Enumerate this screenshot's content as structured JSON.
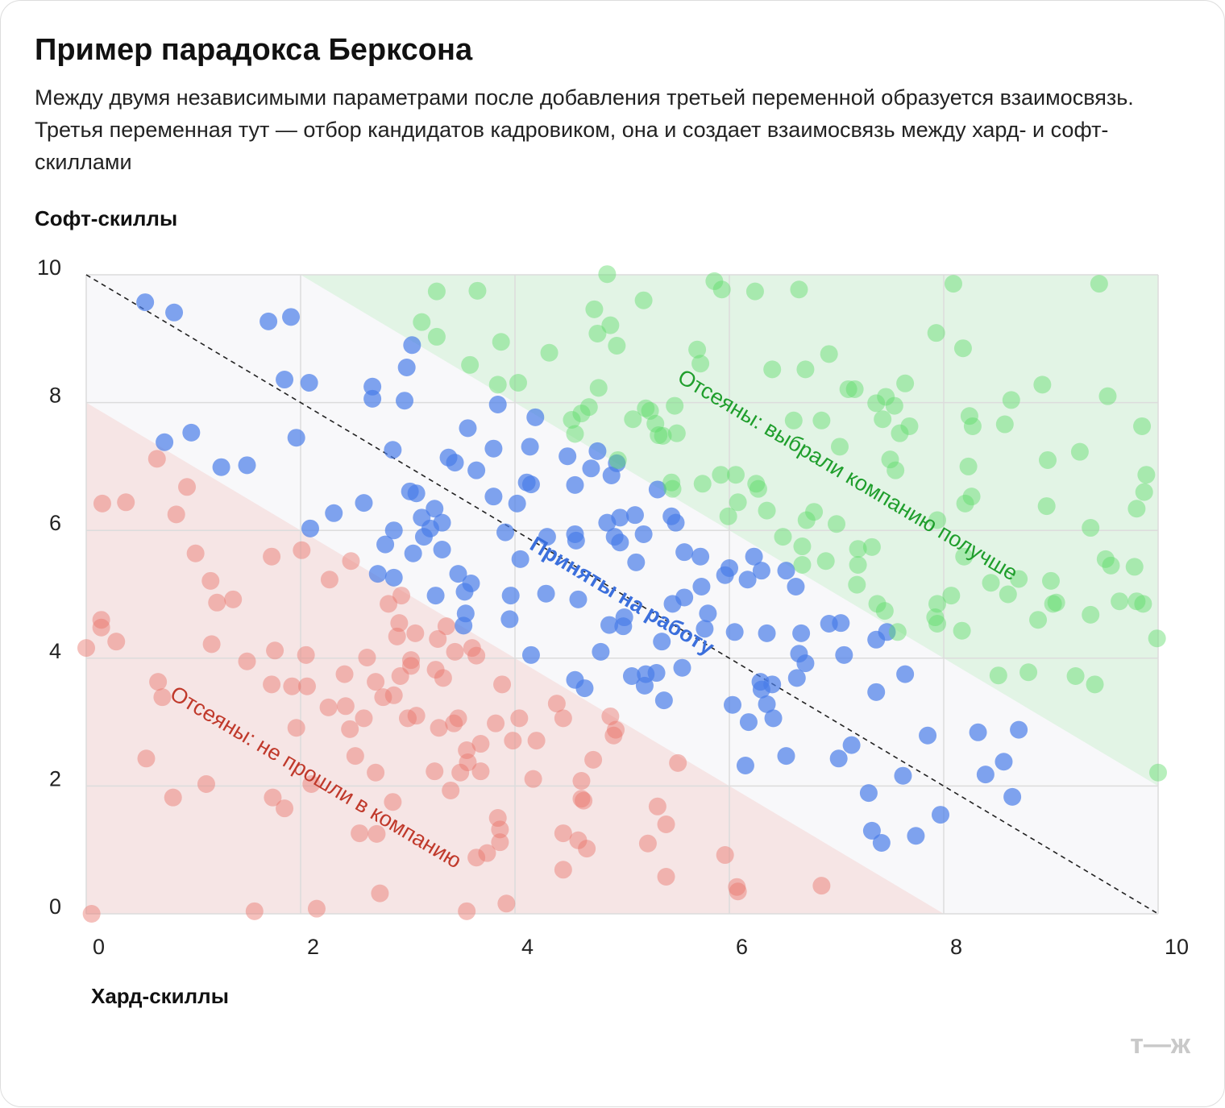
{
  "logo": "т—ж",
  "chart_data": {
    "type": "scatter",
    "title": "Пример парадокса Берксона",
    "subtitle": "Между двумя независимыми параметрами после добавления третьей переменной образуется взаимосвязь. Третья переменная тут — отбор кандидатов кадровиком, она и создает взаимосвязь между хард- и софт-скиллами",
    "xlabel": "Хард-скиллы",
    "ylabel": "Софт-скиллы",
    "xlim": [
      0,
      10
    ],
    "ylim": [
      0,
      10
    ],
    "xticks": [
      0,
      2,
      4,
      6,
      8,
      10
    ],
    "yticks": [
      0,
      2,
      4,
      6,
      8,
      10
    ],
    "grid": true,
    "series": [
      {
        "name": "Отсеяны: не прошли в компанию",
        "color": "#e8736b",
        "x": [
          0.05,
          0.0,
          0.14,
          0.14,
          0.28,
          0.15,
          0.37,
          0.66,
          0.94,
          0.84,
          1.02,
          1.16,
          1.22,
          1.37,
          1.17,
          0.56,
          0.81,
          1.12,
          0.67,
          0.71,
          1.5,
          1.73,
          1.76,
          1.73,
          1.92,
          2.01,
          2.05,
          2.06,
          1.96,
          1.74,
          1.85,
          2.1,
          1.57,
          2.15,
          2.27,
          2.47,
          2.26,
          2.41,
          2.42,
          2.46,
          2.51,
          2.62,
          2.59,
          2.7,
          2.7,
          2.55,
          2.71,
          2.74,
          2.82,
          2.94,
          2.92,
          2.9,
          2.77,
          2.87,
          2.93,
          2.86,
          3.03,
          3.03,
          3.07,
          3.0,
          3.08,
          3.26,
          3.29,
          3.25,
          3.28,
          3.33,
          3.36,
          3.44,
          3.4,
          3.43,
          3.47,
          3.49,
          3.55,
          3.56,
          3.6,
          3.64,
          3.68,
          3.68,
          3.64,
          3.74,
          3.55,
          3.82,
          3.88,
          3.84,
          3.86,
          3.86,
          3.92,
          3.98,
          4.04,
          4.17,
          4.2,
          4.39,
          4.45,
          4.45,
          4.45,
          4.59,
          4.67,
          4.62,
          4.62,
          4.64,
          4.73,
          4.89,
          4.92,
          4.94,
          5.33,
          5.41,
          5.24,
          5.41,
          5.52,
          5.96,
          6.07,
          6.08,
          6.86
        ],
        "values": [
          0.0,
          4.16,
          4.6,
          4.48,
          4.26,
          6.42,
          6.44,
          7.12,
          6.68,
          6.25,
          5.64,
          5.21,
          4.87,
          4.92,
          4.22,
          2.43,
          1.82,
          2.03,
          3.63,
          3.39,
          3.95,
          5.59,
          4.12,
          3.59,
          3.56,
          5.69,
          4.05,
          3.56,
          2.91,
          1.82,
          1.65,
          2.03,
          0.04,
          0.08,
          5.23,
          5.52,
          3.23,
          3.75,
          3.25,
          2.89,
          2.47,
          4.01,
          3.06,
          3.63,
          2.21,
          1.26,
          1.25,
          0.32,
          4.85,
          4.98,
          4.55,
          4.34,
          3.39,
          3.42,
          3.72,
          1.75,
          3.97,
          3.88,
          4.39,
          3.06,
          3.1,
          3.82,
          2.91,
          2.23,
          4.3,
          3.69,
          4.5,
          4.1,
          1.93,
          2.98,
          3.06,
          2.21,
          2.56,
          2.37,
          4.16,
          4.04,
          2.66,
          2.23,
          0.88,
          0.95,
          0.04,
          2.98,
          3.59,
          1.5,
          1.32,
          1.12,
          0.16,
          2.71,
          3.06,
          2.11,
          2.71,
          3.29,
          3.06,
          1.26,
          0.69,
          1.15,
          1.02,
          2.08,
          1.8,
          1.77,
          2.41,
          3.09,
          2.79,
          2.88,
          1.68,
          1.4,
          1.1,
          0.58,
          2.36,
          0.92,
          0.42,
          0.35,
          0.44
        ]
      },
      {
        "name": "Приняты на работу",
        "color": "#4a7ee8",
        "x": [
          0.55,
          0.82,
          1.7,
          1.91,
          1.85,
          2.08,
          1.96,
          0.98,
          0.73,
          1.26,
          1.5,
          2.09,
          2.31,
          2.59,
          2.67,
          2.67,
          2.97,
          2.99,
          3.04,
          2.86,
          3.02,
          3.08,
          3.13,
          3.15,
          3.21,
          3.25,
          3.32,
          2.87,
          2.79,
          3.05,
          3.32,
          2.72,
          2.87,
          3.26,
          3.38,
          3.44,
          3.56,
          3.64,
          3.8,
          3.84,
          3.8,
          4.02,
          4.11,
          4.15,
          4.14,
          4.19,
          3.91,
          4.05,
          3.47,
          3.53,
          3.59,
          3.54,
          3.52,
          3.96,
          3.95,
          4.15,
          4.29,
          4.3,
          4.49,
          4.56,
          4.56,
          4.57,
          4.59,
          4.56,
          4.65,
          4.71,
          4.77,
          4.86,
          4.9,
          4.95,
          4.93,
          4.98,
          4.98,
          5.12,
          5.2,
          5.33,
          5.46,
          5.5,
          5.13,
          4.88,
          5.01,
          5.02,
          4.8,
          5.09,
          5.22,
          5.21,
          5.32,
          5.37,
          5.39,
          5.56,
          5.47,
          5.58,
          5.58,
          5.73,
          5.74,
          5.8,
          5.77,
          5.96,
          6.0,
          6.05,
          6.03,
          6.18,
          6.15,
          6.17,
          6.23,
          6.3,
          6.35,
          6.29,
          6.3,
          6.4,
          6.35,
          6.41,
          6.53,
          6.62,
          6.67,
          6.65,
          6.71,
          6.63,
          6.53,
          6.93,
          7.04,
          7.07,
          7.02,
          7.14,
          7.3,
          7.33,
          7.42,
          7.37,
          7.47,
          7.37,
          7.64,
          7.62,
          7.74,
          7.85,
          7.97,
          8.32,
          8.39,
          8.56,
          8.64,
          8.7
        ],
        "values": [
          9.57,
          9.41,
          9.27,
          9.34,
          8.36,
          8.31,
          7.45,
          7.53,
          7.38,
          6.99,
          7.02,
          6.03,
          6.27,
          6.43,
          8.25,
          8.06,
          8.03,
          8.55,
          8.9,
          7.26,
          6.61,
          6.58,
          6.2,
          5.9,
          6.03,
          6.34,
          6.12,
          6.0,
          5.78,
          5.64,
          5.7,
          5.32,
          5.26,
          4.98,
          7.14,
          7.06,
          7.6,
          6.94,
          7.28,
          7.97,
          6.53,
          6.42,
          6.75,
          6.72,
          7.31,
          7.77,
          5.97,
          5.55,
          5.32,
          5.04,
          5.17,
          4.7,
          4.51,
          4.98,
          4.61,
          4.05,
          5.01,
          5.9,
          7.16,
          6.71,
          5.94,
          5.84,
          4.92,
          3.66,
          3.53,
          6.97,
          7.24,
          6.12,
          6.86,
          7.05,
          5.9,
          5.81,
          6.2,
          6.24,
          5.94,
          6.64,
          6.22,
          6.12,
          5.5,
          4.52,
          4.5,
          4.64,
          4.1,
          3.72,
          3.75,
          3.57,
          3.77,
          4.26,
          3.34,
          3.85,
          4.85,
          4.95,
          5.66,
          5.59,
          5.12,
          4.7,
          4.46,
          5.3,
          5.41,
          4.41,
          3.27,
          3.0,
          2.32,
          5.23,
          5.59,
          5.37,
          4.39,
          3.63,
          3.51,
          3.59,
          3.28,
          3.06,
          5.37,
          5.12,
          4.39,
          4.07,
          3.92,
          3.69,
          2.47,
          4.54,
          4.55,
          4.05,
          2.43,
          2.64,
          1.89,
          1.3,
          1.11,
          4.29,
          4.41,
          3.47,
          3.75,
          2.16,
          1.22,
          2.79,
          1.55,
          2.84,
          2.18,
          2.38,
          1.83,
          2.88
        ]
      },
      {
        "name": "Отсеяны: выбрали компанию получше",
        "color": "#5fdc6a",
        "x": [
          4.86,
          3.27,
          3.65,
          3.13,
          3.27,
          3.87,
          3.58,
          3.84,
          4.03,
          4.32,
          4.74,
          4.77,
          4.89,
          4.95,
          4.78,
          4.53,
          4.56,
          4.69,
          4.62,
          4.96,
          5.1,
          5.2,
          5.22,
          5.26,
          5.31,
          5.34,
          5.38,
          5.49,
          5.51,
          5.46,
          5.47,
          5.75,
          5.7,
          5.73,
          5.86,
          5.93,
          5.92,
          6.06,
          5.99,
          6.08,
          6.24,
          6.4,
          6.27,
          6.25,
          6.35,
          6.5,
          6.65,
          6.71,
          6.6,
          6.72,
          6.79,
          6.68,
          6.68,
          6.86,
          6.93,
          7.0,
          7.03,
          7.11,
          7.17,
          6.9,
          7.2,
          7.2,
          7.19,
          7.37,
          7.46,
          7.43,
          7.54,
          7.59,
          7.5,
          7.55,
          7.64,
          7.68,
          7.33,
          7.38,
          7.45,
          7.57,
          7.93,
          7.94,
          7.94,
          7.94,
          7.92,
          8.09,
          8.18,
          8.07,
          8.17,
          8.23,
          8.2,
          8.24,
          8.27,
          8.26,
          8.19,
          8.44,
          8.57,
          8.63,
          8.51,
          8.6,
          8.7,
          8.79,
          8.88,
          8.92,
          8.96,
          8.97,
          9.0,
          9.05,
          9.02,
          9.23,
          9.27,
          9.37,
          9.37,
          9.41,
          9.45,
          9.53,
          9.51,
          9.56,
          9.64,
          9.8,
          9.86,
          9.78,
          9.8,
          9.85,
          9.87,
          9.89,
          9.99,
          10.0
        ],
        "values": [
          10.01,
          9.74,
          9.75,
          9.26,
          9.03,
          8.95,
          8.59,
          8.28,
          8.31,
          8.78,
          9.46,
          9.08,
          9.21,
          8.89,
          8.23,
          7.73,
          7.51,
          7.93,
          7.83,
          7.1,
          7.74,
          9.6,
          7.91,
          7.87,
          7.67,
          7.49,
          7.48,
          7.95,
          7.52,
          6.75,
          6.65,
          6.73,
          8.83,
          8.61,
          9.9,
          9.77,
          6.87,
          6.87,
          6.22,
          6.44,
          9.74,
          8.52,
          6.65,
          6.73,
          6.31,
          5.9,
          9.77,
          8.52,
          7.72,
          6.16,
          6.29,
          5.75,
          5.46,
          7.72,
          8.76,
          6.1,
          7.31,
          8.21,
          8.21,
          5.52,
          5.71,
          5.46,
          5.15,
          7.99,
          8.09,
          7.74,
          7.95,
          7.52,
          7.11,
          6.94,
          8.3,
          7.63,
          5.74,
          4.85,
          4.74,
          4.41,
          9.09,
          6.16,
          4.85,
          4.54,
          4.64,
          9.86,
          8.85,
          4.98,
          4.43,
          7.0,
          6.42,
          7.79,
          7.63,
          6.53,
          5.59,
          5.18,
          7.66,
          8.04,
          3.73,
          5.0,
          5.24,
          3.78,
          4.6,
          8.28,
          6.38,
          7.1,
          5.21,
          4.87,
          4.85,
          3.72,
          7.23,
          6.04,
          4.68,
          3.59,
          9.86,
          8.1,
          5.55,
          5.45,
          4.89,
          4.89,
          4.85,
          5.43,
          6.34,
          7.63,
          6.6,
          6.87,
          4.31,
          2.21
        ]
      }
    ]
  }
}
